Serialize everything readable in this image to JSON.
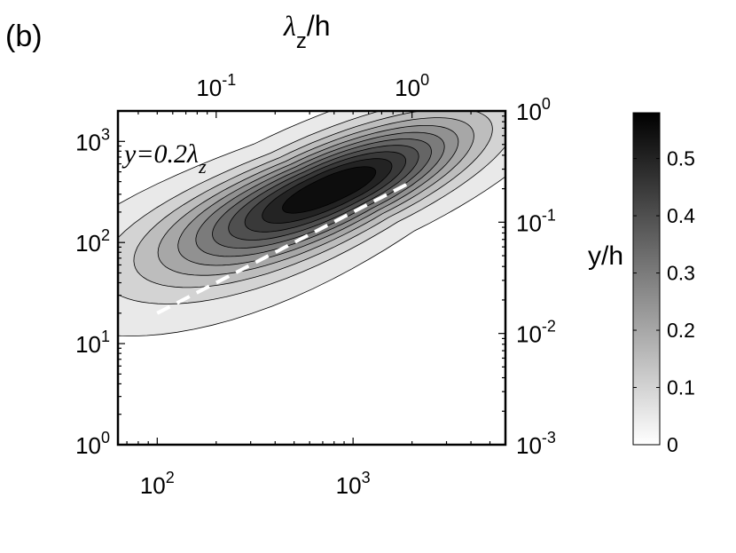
{
  "panel_label": "(b)",
  "chart_data": {
    "type": "heatmap",
    "title": "",
    "bottom_axis": {
      "scale": "log",
      "range": [
        63,
        6000
      ],
      "ticks": [
        {
          "value": 100,
          "base": "10",
          "exp": "2"
        },
        {
          "value": 1000,
          "base": "10",
          "exp": "3"
        }
      ]
    },
    "left_axis": {
      "scale": "log",
      "range": [
        1,
        2000
      ],
      "ticks": [
        {
          "value": 1,
          "base": "10",
          "exp": "0"
        },
        {
          "value": 10,
          "base": "10",
          "exp": "1"
        },
        {
          "value": 100,
          "base": "10",
          "exp": "2"
        },
        {
          "value": 1000,
          "base": "10",
          "exp": "3"
        }
      ]
    },
    "top_axis": {
      "label_main": "λ",
      "label_sub": "z",
      "label_rest": "/h",
      "scale": "log",
      "range": [
        0.0315,
        3.0
      ],
      "ticks": [
        {
          "value": 0.1,
          "base": "10",
          "exp": "-1"
        },
        {
          "value": 1,
          "base": "10",
          "exp": "0"
        }
      ]
    },
    "right_axis": {
      "label": "y/h",
      "scale": "log",
      "range": [
        0.001,
        1
      ],
      "ticks": [
        {
          "value": 0.001,
          "base": "10",
          "exp": "-3"
        },
        {
          "value": 0.01,
          "base": "10",
          "exp": "-2"
        },
        {
          "value": 0.1,
          "base": "10",
          "exp": "-1"
        },
        {
          "value": 1,
          "base": "10",
          "exp": "0"
        }
      ]
    },
    "annotation": {
      "text_main": "y=0.2λ",
      "text_sub": "z"
    },
    "reference_line": {
      "style": "dashed",
      "color": "#ffffff",
      "x": [
        100,
        1900
      ],
      "y": [
        20,
        380
      ]
    },
    "colorbar": {
      "range": [
        0,
        0.58
      ],
      "ticks": [
        {
          "value": 0,
          "label": "0"
        },
        {
          "value": 0.1,
          "label": "0.1"
        },
        {
          "value": 0.2,
          "label": "0.2"
        },
        {
          "value": 0.3,
          "label": "0.3"
        },
        {
          "value": 0.4,
          "label": "0.4"
        },
        {
          "value": 0.5,
          "label": "0.5"
        }
      ],
      "color_low": "#ffffff",
      "color_high": "#000000"
    },
    "contour_levels": [
      0.02,
      0.07,
      0.12,
      0.17,
      0.22,
      0.27,
      0.32,
      0.37,
      0.42,
      0.47,
      0.52
    ],
    "peak": {
      "value": 0.58,
      "x": 800,
      "y": 350
    },
    "ridge": {
      "x_start": 150,
      "x_end": 3000,
      "y_at_start": 40,
      "y_at_end": 700
    }
  }
}
